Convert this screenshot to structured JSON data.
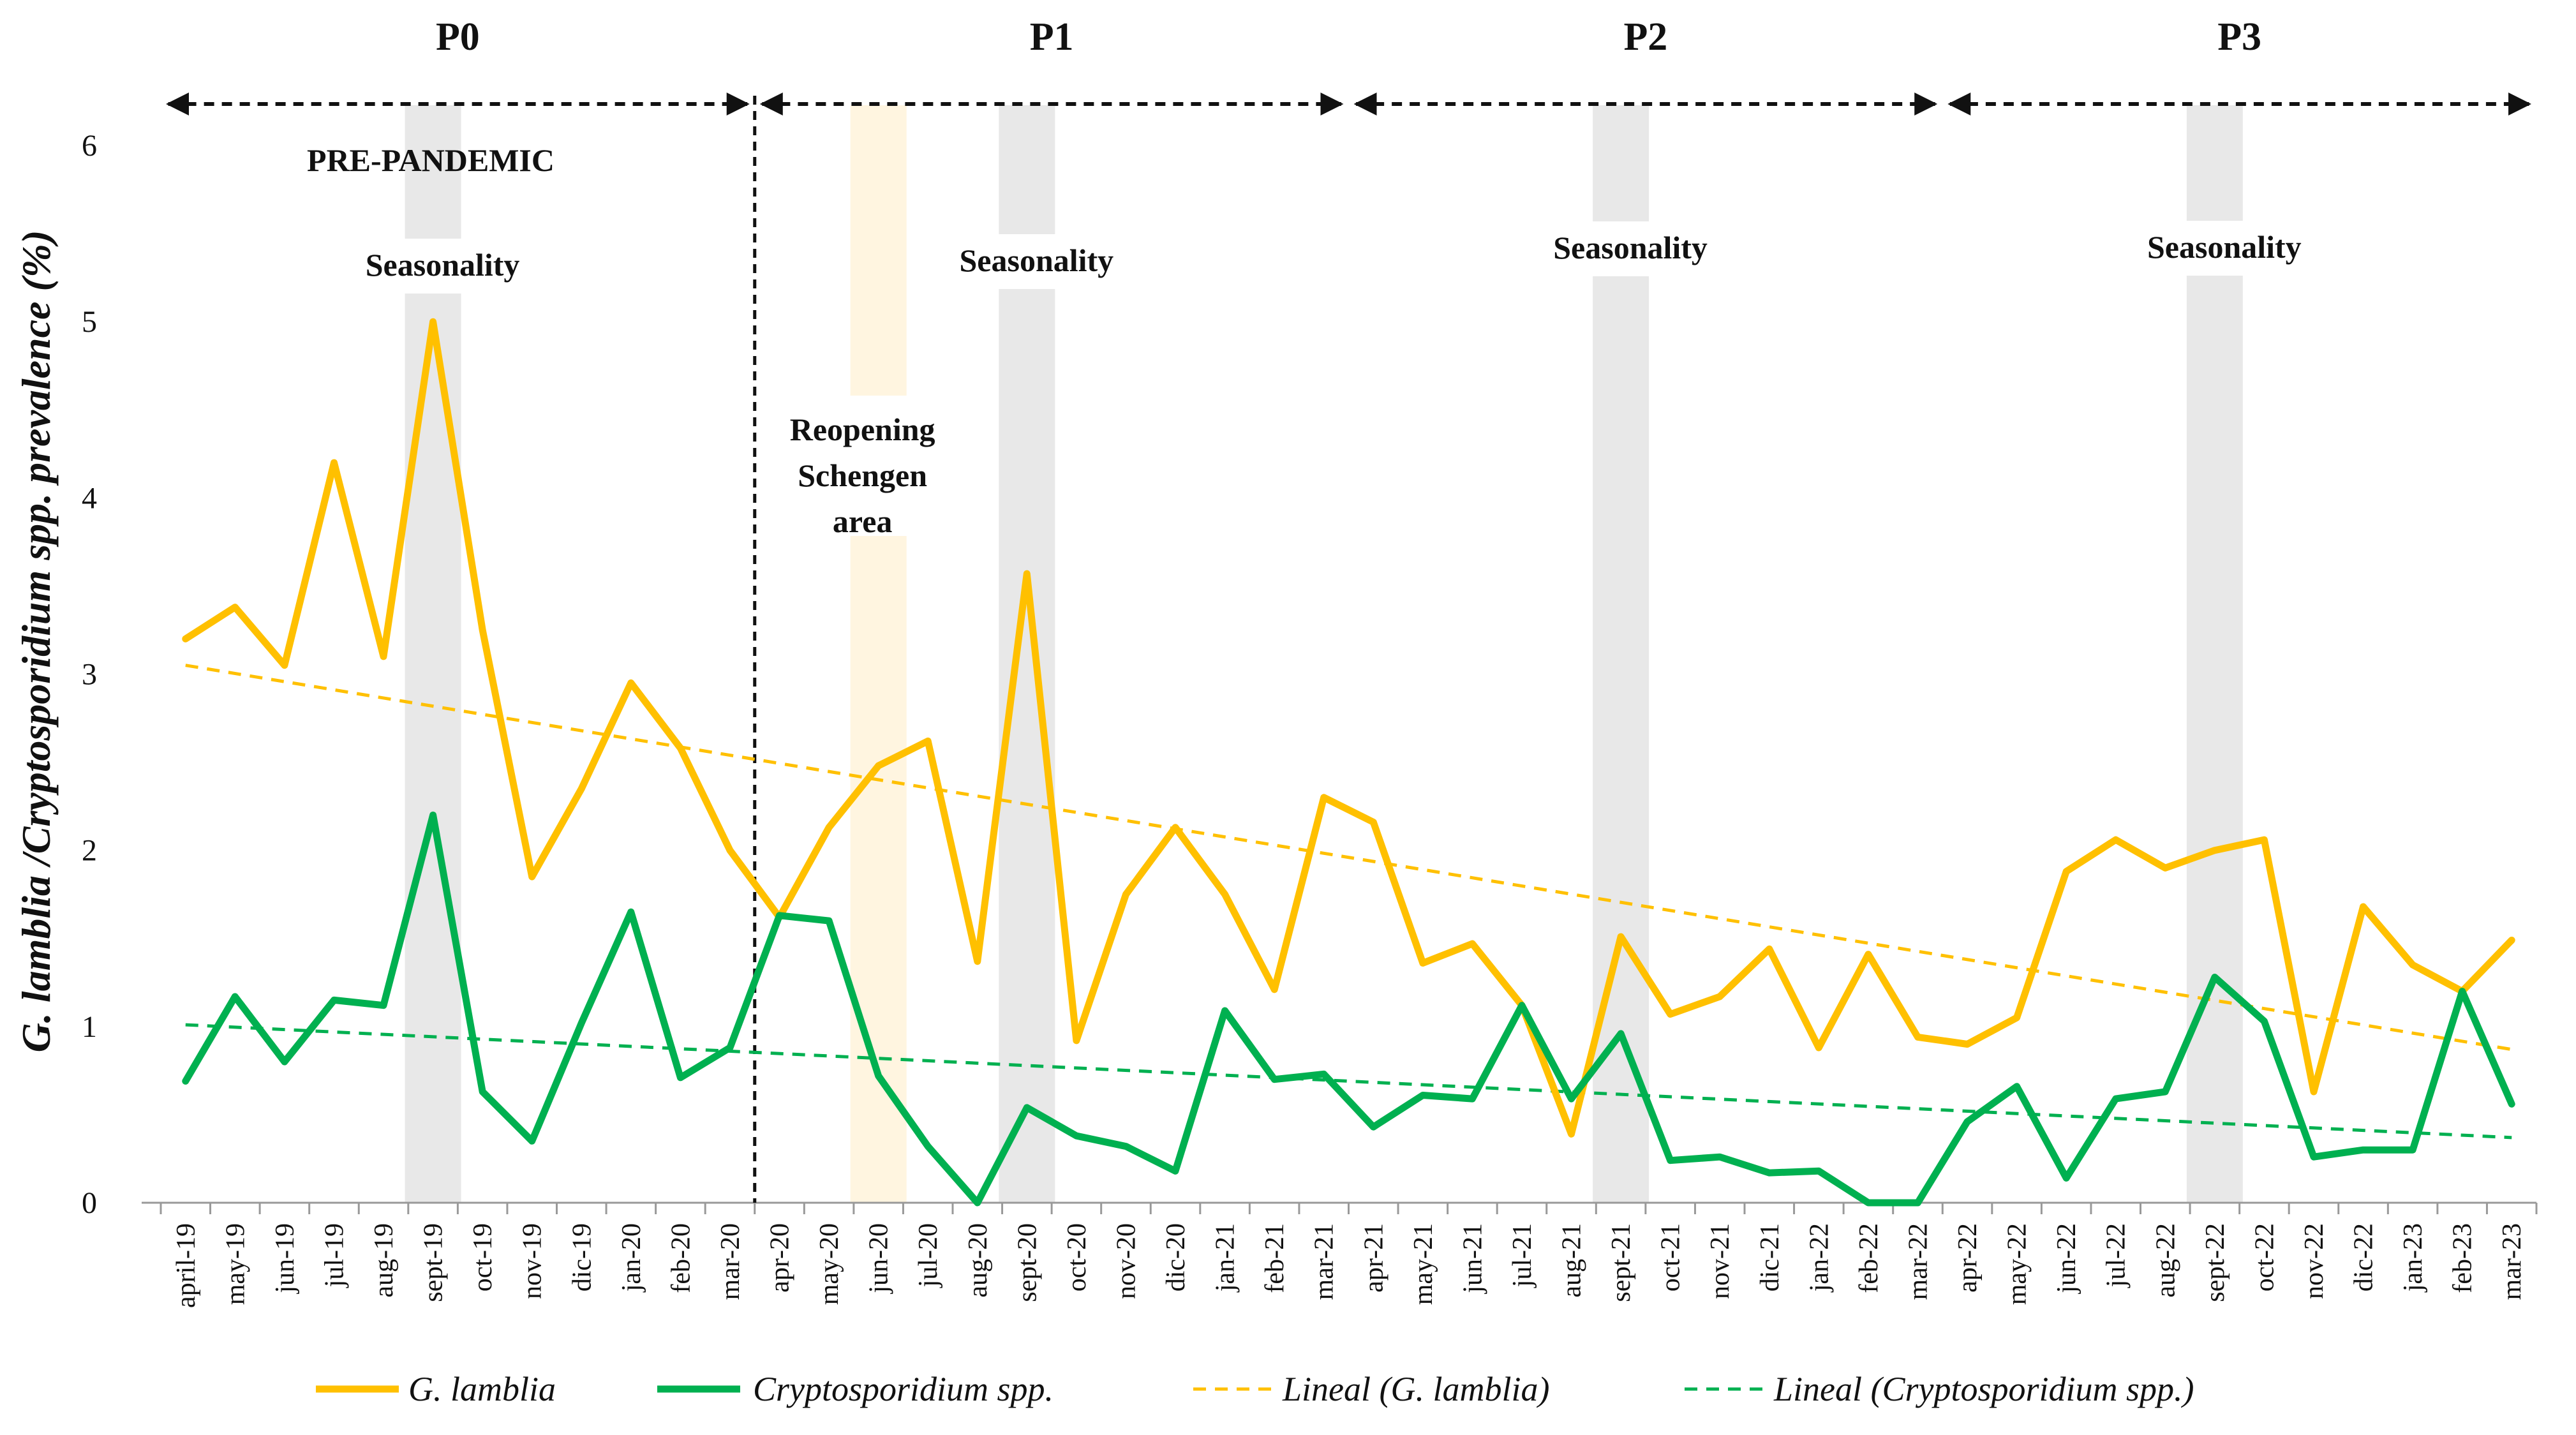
{
  "chart_data": {
    "type": "line",
    "ylabel": "G. lamblia /Cryptosporidium spp. prevalence (%)",
    "ylim": [
      0,
      6
    ],
    "yticks": [
      "0",
      "1",
      "2",
      "3",
      "4",
      "5",
      "6"
    ],
    "grid": false,
    "legend_position": "bottom",
    "categories": [
      "april-19",
      "may-19",
      "jun-19",
      "jul-19",
      "aug-19",
      "sept-19",
      "oct-19",
      "nov-19",
      "dic-19",
      "jan-20",
      "feb-20",
      "mar-20",
      "apr-20",
      "may-20",
      "jun-20",
      "jul-20",
      "aug-20",
      "sept-20",
      "oct-20",
      "nov-20",
      "dic-20",
      "jan-21",
      "feb-21",
      "mar-21",
      "apr-21",
      "may-21",
      "jun-21",
      "jul-21",
      "aug-21",
      "sept-21",
      "oct-21",
      "nov-21",
      "dic-21",
      "jan-22",
      "feb-22",
      "mar-22",
      "apr-22",
      "may-22",
      "jun-22",
      "jul-22",
      "aug-22",
      "sept-22",
      "oct-22",
      "nov-22",
      "dic-22",
      "jan-23",
      "feb-23",
      "mar-23"
    ],
    "series": [
      {
        "name": "G. lamblia",
        "color": "#FFC000",
        "style": "solid",
        "values": [
          3.2,
          3.38,
          3.05,
          4.2,
          3.1,
          5.0,
          3.25,
          1.85,
          2.35,
          2.95,
          2.58,
          2.0,
          1.62,
          2.13,
          2.48,
          2.62,
          1.37,
          3.57,
          0.92,
          1.75,
          2.13,
          1.75,
          1.21,
          2.3,
          2.16,
          1.36,
          1.47,
          1.12,
          0.39,
          1.51,
          1.07,
          1.17,
          1.44,
          0.88,
          1.41,
          0.94,
          0.9,
          1.05,
          1.88,
          2.06,
          1.9,
          2.0,
          2.06,
          0.63,
          1.68,
          1.35,
          1.2,
          1.49
        ]
      },
      {
        "name": "Cryptosporidium spp.",
        "color": "#00B050",
        "style": "solid",
        "values": [
          0.69,
          1.17,
          0.8,
          1.15,
          1.12,
          2.2,
          0.63,
          0.35,
          1.02,
          1.65,
          0.71,
          0.88,
          1.63,
          1.6,
          0.72,
          0.32,
          0.0,
          0.54,
          0.38,
          0.32,
          0.18,
          1.09,
          0.7,
          0.73,
          0.43,
          0.61,
          0.59,
          1.12,
          0.59,
          0.96,
          0.24,
          0.26,
          0.17,
          0.18,
          0.0,
          0.0,
          0.46,
          0.66,
          0.14,
          0.59,
          0.63,
          1.28,
          1.03,
          0.26,
          0.3,
          0.3,
          1.2,
          0.56
        ]
      },
      {
        "name": "Lineal (G. lamblia)",
        "color": "#FFC000",
        "style": "dashed",
        "trend": [
          3.05,
          0.87
        ]
      },
      {
        "name": "Lineal (Cryptosporidium spp.)",
        "color": "#00B050",
        "style": "dashed",
        "trend": [
          1.01,
          0.37
        ]
      }
    ],
    "phases": [
      {
        "label": "P0",
        "start": "april-19",
        "end": "mar-20"
      },
      {
        "label": "P1",
        "start": "apr-20",
        "end": "mar-21"
      },
      {
        "label": "P2",
        "start": "apr-21",
        "end": "mar-22"
      },
      {
        "label": "P3",
        "start": "apr-22",
        "end": "mar-23"
      }
    ],
    "pandemic_divider_after": "mar-20",
    "annotations": {
      "pre_pandemic": "PRE-PANDEMIC",
      "seasonality": "Seasonality",
      "reopening_lines": [
        "Reopening",
        "Schengen",
        "area"
      ]
    },
    "seasonality_bands": [
      "sept-19",
      "sept-20",
      "sept-21",
      "sept-22"
    ],
    "seasonality_band_color": "#E8E8E8",
    "reopening_band": "jun-20",
    "reopening_band_color": "#FFF5E0"
  }
}
